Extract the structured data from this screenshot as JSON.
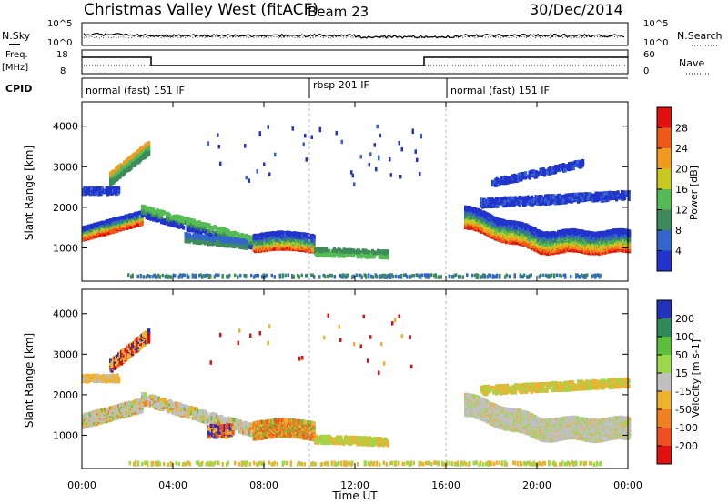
{
  "header": {
    "title": "Christmas Valley West (fitACF)",
    "beam": "Beam 23",
    "date": "30/Dec/2014"
  },
  "noise_panel": {
    "left_label": "N.Sky",
    "right_label": "N.Search",
    "left_ticks": [
      "10^5",
      "10^0"
    ],
    "right_ticks": [
      "10^5",
      "10^0"
    ]
  },
  "freq_panel": {
    "left_label_1": "Freq.",
    "left_label_2": "[MHz]",
    "right_label": "Nave",
    "left_ticks": [
      "18",
      "8"
    ],
    "right_ticks": [
      "60",
      "0"
    ]
  },
  "cpid": {
    "label": "CPID",
    "segments": [
      {
        "name": "normal (fast) 151 IF",
        "start_h": 0,
        "end_h": 10
      },
      {
        "name": "rbsp 201 IF",
        "start_h": 10,
        "end_h": 16
      },
      {
        "name": "normal (fast) 151 IF",
        "start_h": 16,
        "end_h": 24
      }
    ]
  },
  "chart_data": [
    {
      "type": "heatmap",
      "title": "Power",
      "ylabel": "Slant Range [km]",
      "xlabel": "Time UT",
      "yticks": [
        "1000",
        "2000",
        "3000",
        "4000"
      ],
      "ylim": [
        180,
        4600
      ],
      "xlim_h": [
        0,
        24
      ],
      "colorbar": {
        "label": "Power [dB]",
        "ticks": [
          "4",
          "8",
          "12",
          "16",
          "20",
          "24",
          "28"
        ],
        "colors": [
          "#2233cc",
          "#3366cc",
          "#3d8a5a",
          "#55bb55",
          "#c8c820",
          "#f09a20",
          "#f05a18",
          "#e01010"
        ]
      }
    },
    {
      "type": "heatmap",
      "title": "Velocity",
      "ylabel": "Slant Range [km]",
      "xlabel": "Time UT",
      "yticks": [
        "1000",
        "2000",
        "3000",
        "4000"
      ],
      "ylim": [
        180,
        4600
      ],
      "xlim_h": [
        0,
        24
      ],
      "colorbar": {
        "label": "Velocity [m s-1]",
        "ticks": [
          "200",
          "100",
          "50",
          "15",
          "-15",
          "-50",
          "-100",
          "-200"
        ],
        "colors": [
          "#2233bb",
          "#2f8a5a",
          "#5cbf3a",
          "#9ad94a",
          "#c0c0c0",
          "#f0b030",
          "#f08020",
          "#f05020",
          "#e01010"
        ]
      }
    }
  ],
  "xaxis": {
    "ticks": [
      "00:00",
      "04:00",
      "08:00",
      "12:00",
      "16:00",
      "20:00",
      "00:00"
    ],
    "label": "Time UT"
  }
}
